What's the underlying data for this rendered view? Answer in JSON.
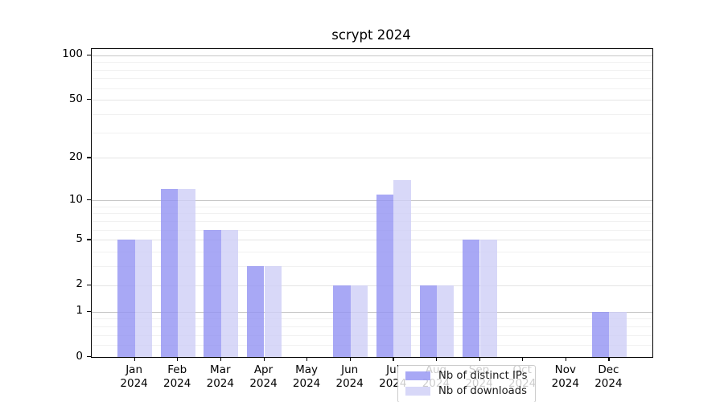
{
  "chart_data": {
    "type": "bar",
    "title": "scrypt 2024",
    "categories": [
      "Jan 2024",
      "Feb 2024",
      "Mar 2024",
      "Apr 2024",
      "May 2024",
      "Jun 2024",
      "Jul 2024",
      "Aug 2024",
      "Sep 2024",
      "Oct 2024",
      "Nov 2024",
      "Dec 2024"
    ],
    "series": [
      {
        "name": "Nb of distinct IPs",
        "color": "#9292f3",
        "alpha": 0.8,
        "values": [
          5,
          12,
          6,
          3,
          0,
          2,
          11,
          2,
          5,
          0,
          0,
          1
        ]
      },
      {
        "name": "Nb of downloads",
        "color": "#cecef6",
        "alpha": 0.8,
        "values": [
          5,
          12,
          6,
          3,
          0,
          2,
          14,
          2,
          5,
          0,
          0,
          1
        ]
      }
    ],
    "xlabel": "",
    "ylabel": "",
    "yscale": "log1p",
    "ylim": [
      0,
      110
    ],
    "yticks": [
      0,
      1,
      2,
      5,
      10,
      20,
      50,
      100
    ],
    "ytick_labels": [
      "0",
      "1",
      "2",
      "5",
      "10",
      "20",
      "50",
      "100"
    ],
    "grid": true,
    "legend_position": "lower center",
    "gridlines": {
      "major": [
        1,
        10,
        100
      ],
      "labeled_minor": [
        2,
        5,
        20,
        50
      ],
      "minor": [
        0.2,
        0.4,
        0.6,
        0.8,
        3,
        4,
        6,
        7,
        8,
        9,
        30,
        40,
        60,
        70,
        80,
        90
      ]
    },
    "colors": {
      "major_grid": "#c6c6c6",
      "labeled_grid": "#e4e4e4",
      "minor_grid": "#f1f1f1",
      "spine": "#000000",
      "text": "#000000"
    }
  }
}
